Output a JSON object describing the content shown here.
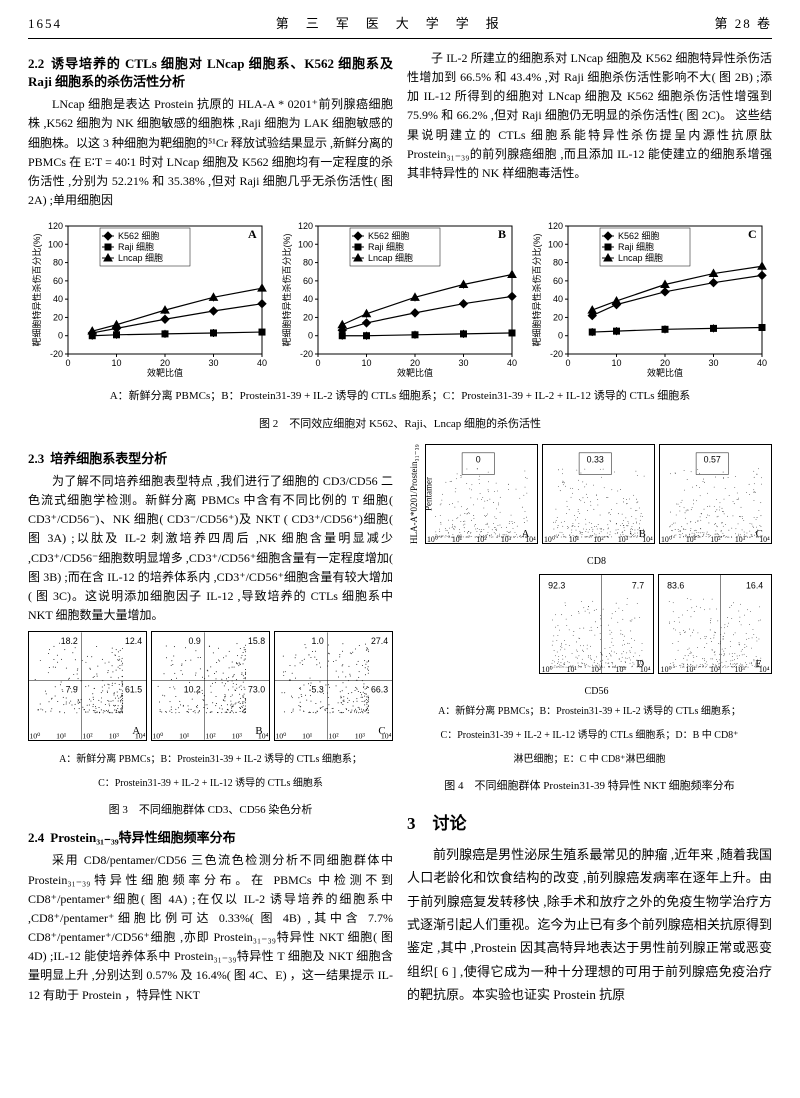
{
  "header": {
    "page": "1654",
    "journal": "第　三　军　医　大　学　学　报",
    "vol": "第 28 卷"
  },
  "sec22": {
    "title_num": "2.2",
    "title": "诱导培养的 CTLs 细胞对 LNcap 细胞系、K562 细胞系及 Raji 细胞系的杀伤活性分析",
    "left_para": "LNcap 细胞是表达 Prostein 抗原的 HLA-A * 0201⁺前列腺癌细胞株 ,K562 细胞为 NK 细胞敏感的细胞株 ,Raji 细胞为 LAK 细胞敏感的细胞株。以这 3 种细胞为靶细胞的⁵¹Cr 释放试验结果显示 ,新鲜分离的 PBMCs 在 E∶T = 40∶1 时对 LNcap 细胞及 K562 细胞均有一定程度的杀伤活性 ,分别为 52.21% 和 35.38% ,但对 Raji 细胞几乎无杀伤活性( 图 2A) ;单用细胞因",
    "right_para": "子 IL-2 所建立的细胞系对 LNcap 细胞及 K562 细胞特异性杀伤活性增加到 66.5% 和 43.4% ,对 Raji 细胞杀伤活性影响不大( 图 2B) ;添加 IL-12 所得到的细胞对 LNcap 细胞及 K562 细胞杀伤活性增强到 75.9% 和 66.2% ,但对 Raji 细胞仍无明显的杀伤活性( 图 2C)。 这些结果说明建立的 CTLs 细胞系能特异性杀伤提呈内源性抗原肽 Prostein₃₁₋₃₉的前列腺癌细胞 ,而且添加 IL-12 能使建立的细胞系增强其非特异性的 NK 样细胞毒活性。"
  },
  "fig2": {
    "charts": [
      {
        "label": "A",
        "ylim": [
          -20,
          120
        ],
        "xlim": [
          0,
          40
        ],
        "series": {
          "k562": [
            [
              5,
              3
            ],
            [
              10,
              8
            ],
            [
              20,
              18
            ],
            [
              30,
              27
            ],
            [
              40,
              35
            ]
          ],
          "raji": [
            [
              5,
              0
            ],
            [
              10,
              1
            ],
            [
              20,
              2
            ],
            [
              30,
              3
            ],
            [
              40,
              4
            ]
          ],
          "lncap": [
            [
              5,
              5
            ],
            [
              10,
              12
            ],
            [
              20,
              28
            ],
            [
              30,
              42
            ],
            [
              40,
              52
            ]
          ]
        }
      },
      {
        "label": "B",
        "ylim": [
          -20,
          120
        ],
        "xlim": [
          0,
          40
        ],
        "series": {
          "k562": [
            [
              5,
              6
            ],
            [
              10,
              14
            ],
            [
              20,
              25
            ],
            [
              30,
              35
            ],
            [
              40,
              43
            ]
          ],
          "raji": [
            [
              5,
              0
            ],
            [
              10,
              0
            ],
            [
              20,
              1
            ],
            [
              30,
              2
            ],
            [
              40,
              3
            ]
          ],
          "lncap": [
            [
              5,
              12
            ],
            [
              10,
              24
            ],
            [
              20,
              42
            ],
            [
              30,
              56
            ],
            [
              40,
              67
            ]
          ]
        }
      },
      {
        "label": "C",
        "ylim": [
          -20,
          120
        ],
        "xlim": [
          0,
          40
        ],
        "series": {
          "k562": [
            [
              5,
              22
            ],
            [
              10,
              34
            ],
            [
              20,
              48
            ],
            [
              30,
              58
            ],
            [
              40,
              66
            ]
          ],
          "raji": [
            [
              5,
              4
            ],
            [
              10,
              5
            ],
            [
              20,
              7
            ],
            [
              30,
              8
            ],
            [
              40,
              9
            ]
          ],
          "lncap": [
            [
              5,
              28
            ],
            [
              10,
              38
            ],
            [
              20,
              56
            ],
            [
              30,
              68
            ],
            [
              40,
              76
            ]
          ]
        }
      }
    ],
    "legend": {
      "k562": "K562 细胞",
      "raji": "Raji 细胞",
      "lncap": "Lncap 细胞"
    },
    "ylabel": "靶细胞特异性杀伤百分比(%)",
    "xlabel": "效靶比值",
    "yticks": [
      -20,
      0,
      20,
      40,
      60,
      80,
      100,
      120
    ],
    "xticks": [
      0,
      10,
      20,
      30,
      40
    ],
    "caption_line": "A：新鲜分离 PBMCs；B：Prostein31-39 + IL-2 诱导的 CTLs 细胞系；C：Prostein31-39 + IL-2 + IL-12 诱导的 CTLs 细胞系",
    "caption": "图 2　不同效应细胞对 K562、Raji、Lncap 细胞的杀伤活性"
  },
  "sec23": {
    "title_num": "2.3",
    "title": "培养细胞系表型分析",
    "para": "为了解不同培养细胞表型特点 ,我们进行了细胞的 CD3/CD56 二色流式细胞学检测。新鲜分离 PBMCs 中含有不同比例的 T 细胞( CD3⁺/CD56⁻)、NK 细胞( CD3⁻/CD56⁺)及 NKT ( CD3⁺/CD56⁺)细胞( 图 3A) ;以肽及 IL-2 刺激培养四周后 ,NK 细胞含量明显减少 ,CD3⁺/CD56⁻细胞数明显增多 ,CD3⁺/CD56⁺细胞含量有一定程度增加( 图 3B) ;而在含 IL-12 的培养体系内 ,CD3⁺/CD56⁺细胞含量有较大增加( 图 3C)。这说明添加细胞因子 IL-12 ,导致培养的 CTLs 细胞系中 NKT 细胞数量大量增加。"
  },
  "fig3": {
    "panels": [
      {
        "label": "A",
        "q": [
          "18.2",
          "12.4",
          "7.9",
          "61.5"
        ]
      },
      {
        "label": "B",
        "q": [
          "0.9",
          "15.8",
          "10.2",
          "73.0"
        ]
      },
      {
        "label": "C",
        "q": [
          "1.0",
          "27.4",
          "5.3",
          "66.3"
        ]
      }
    ],
    "caption_line": "A：新鲜分离 PBMCs；B：Prostein31-39 + IL-2 诱导的 CTLs 细胞系；",
    "caption_line2": "C：Prostein31-39 + IL-2 + IL-12 诱导的 CTLs 细胞系",
    "caption": "图 3　不同细胞群体 CD3、CD56 染色分析"
  },
  "sec24": {
    "title_num": "2.4",
    "title": "Prostein₃₁₋₃₉特异性细胞频率分布",
    "para": "采用 CD8/pentamer/CD56 三色流色检测分析不同细胞群体中 Prostein₃₁₋₃₉特异性细胞频率分布。在 PBMCs 中检测不到 CD8⁺/pentamer⁺细胞( 图 4A) ;在仅以 IL-2 诱导培养的细胞系中 ,CD8⁺/pentamer⁺细胞比例可达 0.33%( 图 4B) ,其中含 7.7% CD8⁺/pentamer⁺/CD56⁺细胞 ,亦即 Prostein₃₁₋₃₉特异性 NKT 细胞( 图 4D) ;IL-12 能使培养体系中 Prostein₃₁₋₃₉特异性 T 细胞及 NKT 细胞含量明显上升 ,分别达到 0.57% 及 16.4%( 图 4C、E) ，这一结果提示 IL-12 有助于 Prostein ，特异性 NKT"
  },
  "fig4": {
    "panels": [
      {
        "label": "A",
        "val": "0"
      },
      {
        "label": "B",
        "val": "0.33"
      },
      {
        "label": "C",
        "val": "0.57"
      },
      {
        "label": "D",
        "v1": "92.3",
        "v2": "7.7"
      },
      {
        "label": "E",
        "v1": "83.6",
        "v2": "16.4"
      }
    ],
    "xlabel1": "CD8",
    "xlabel2": "CD56",
    "ylabel": "HLA-A*0201/Prostein₃₁₋₃₉ Pentamer",
    "caption_line": "A：新鲜分离 PBMCs；B：Prostein31-39 + IL-2 诱导的 CTLs 细胞系；",
    "caption_line2": "C：Prostein31-39 + IL-2 + IL-12 诱导的 CTLs 细胞系；D：B 中 CD8⁺",
    "caption_line3": "淋巴细胞；E：C 中 CD8⁺淋巴细胞",
    "caption": "图 4　不同细胞群体 Prostein31-39 特异性 NKT 细胞频率分布"
  },
  "sec3": {
    "title": "3　讨论",
    "para": "前列腺癌是男性泌尿生殖系最常见的肿瘤 ,近年来 ,随着我国人口老龄化和饮食结构的改变 ,前列腺癌发病率在逐年上升。由于前列腺癌复发转移快 ,除手术和放疗之外的免疫生物学治疗方式逐渐引起人们重视。迄今为止已有多个前列腺癌相关抗原得到鉴定 ,其中 ,Prostein 因其高特异地表达于男性前列腺正常或恶变组织[ 6 ] ,使得它成为一种十分理想的可用于前列腺癌免疫治疗的靶抗原。本实验也证实 Prostein 抗原"
  },
  "axis_ticks": "10⁰ 10¹ 10² 10³ 10⁴"
}
